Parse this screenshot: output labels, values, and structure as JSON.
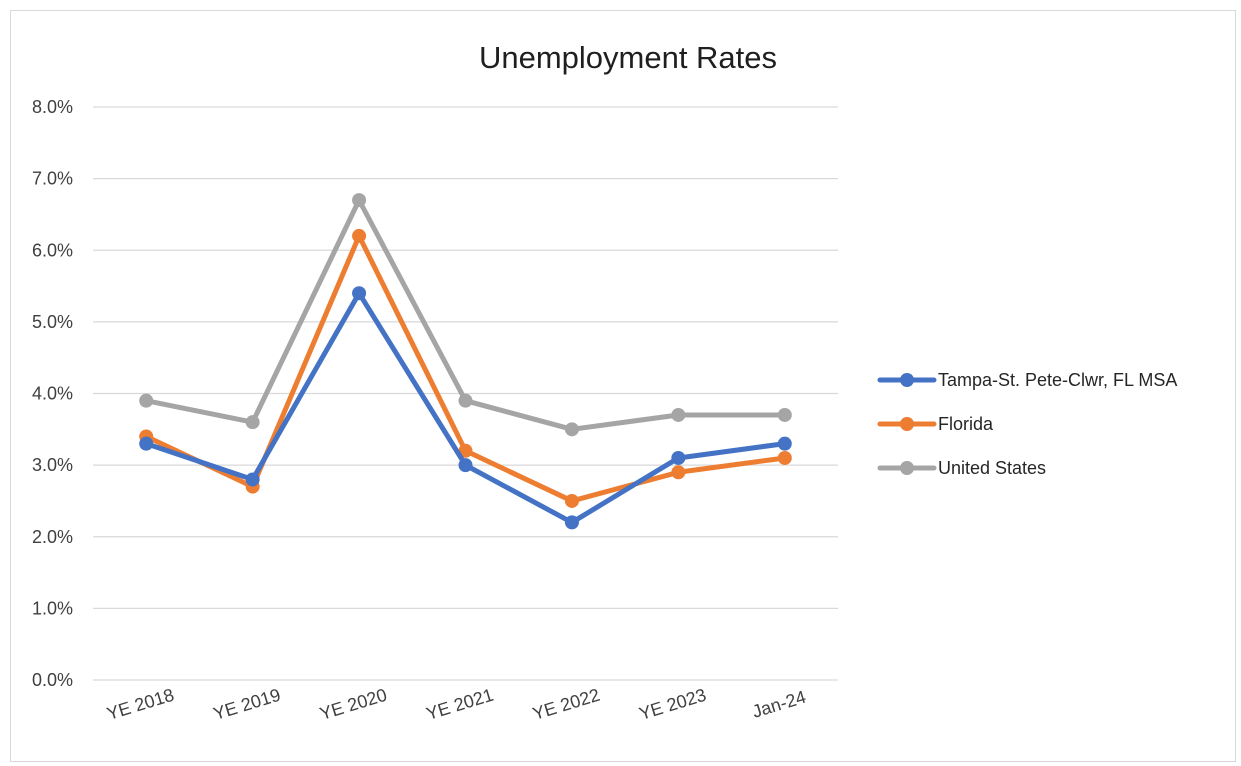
{
  "chart_data": {
    "type": "line",
    "title": "Unemployment Rates",
    "xlabel": "",
    "ylabel": "",
    "categories": [
      "YE 2018",
      "YE 2019",
      "YE 2020",
      "YE 2021",
      "YE 2022",
      "YE 2023",
      "Jan-24"
    ],
    "ylim": [
      0,
      8
    ],
    "yticks": [
      "0.0%",
      "1.0%",
      "2.0%",
      "3.0%",
      "4.0%",
      "5.0%",
      "6.0%",
      "7.0%",
      "8.0%"
    ],
    "grid": true,
    "legend_position": "right",
    "series": [
      {
        "name": "Tampa-St. Pete-Clwr, FL MSA",
        "color": "#4472c4",
        "values": [
          3.3,
          2.8,
          5.4,
          3.0,
          2.2,
          3.1,
          3.3
        ]
      },
      {
        "name": "Florida",
        "color": "#ed7d31",
        "values": [
          3.4,
          2.7,
          6.2,
          3.2,
          2.5,
          2.9,
          3.1
        ]
      },
      {
        "name": "United States",
        "color": "#a5a5a5",
        "values": [
          3.9,
          3.6,
          6.7,
          3.9,
          3.5,
          3.7,
          3.7
        ]
      }
    ]
  }
}
